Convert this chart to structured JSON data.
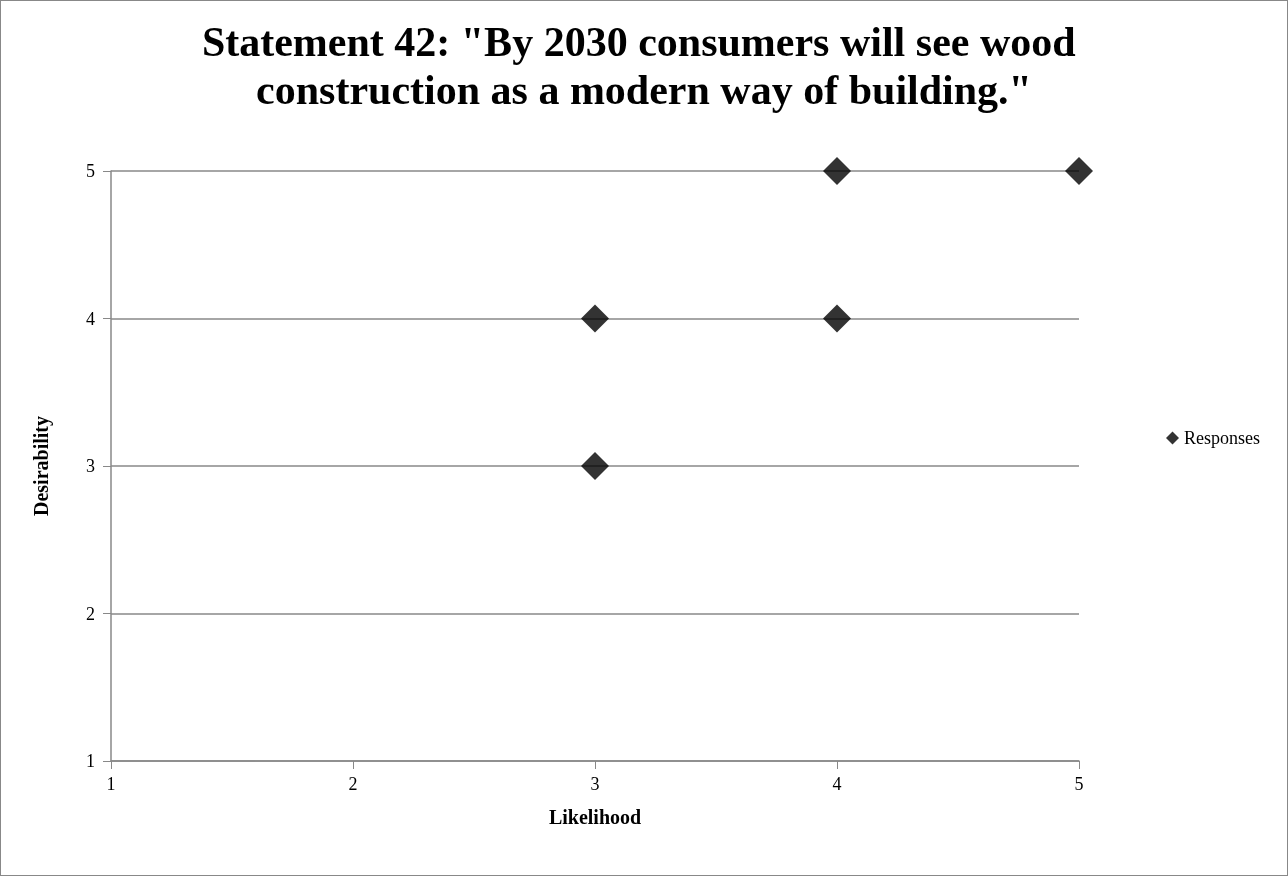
{
  "chart_data": {
    "type": "scatter",
    "title": "Statement 42: \"By 2030 consumers will see wood construction as a modern way of building.\"",
    "xlabel": "Likelihood",
    "ylabel": "Desirability",
    "x": [
      3,
      3,
      4,
      4,
      5
    ],
    "series": [
      {
        "name": "Responses",
        "color": "#000000",
        "values": [
          3,
          4,
          4,
          5,
          5
        ]
      }
    ],
    "xlim": [
      1,
      5
    ],
    "xticks": [
      1,
      2,
      3,
      4,
      5
    ],
    "ylim": [
      1,
      5
    ],
    "yticks": [
      1,
      2,
      3,
      4,
      5
    ],
    "grid": "y",
    "legend": "right",
    "marker": "diamond"
  }
}
